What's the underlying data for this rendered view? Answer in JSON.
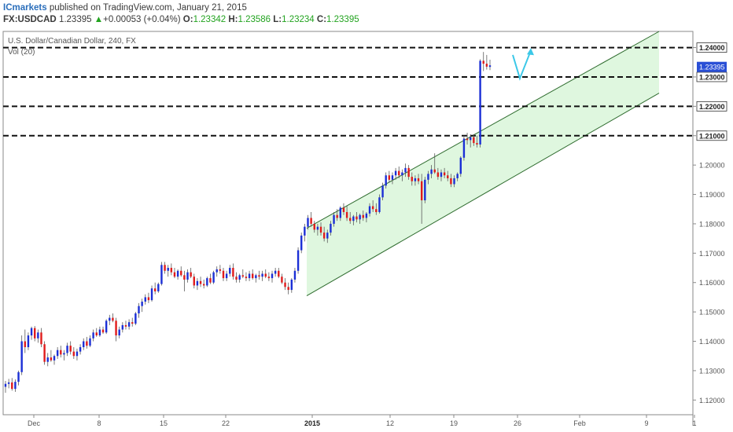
{
  "header": {
    "publisher": "ICmarkets",
    "published_text": "published on TradingView.com, January 21, 2015",
    "symbol": "FX:USDCAD",
    "last": "1.23395",
    "change_arrow": "▲",
    "change": "+0.00053 (+0.04%)",
    "open_label": "O:",
    "open": "1.23342",
    "high_label": "H:",
    "high": "1.23586",
    "low_label": "L:",
    "low": "1.23234",
    "close_label": "C:",
    "close": "1.23395"
  },
  "chart_data": {
    "type": "candlestick",
    "title": "U.S. Dollar/Canadian Dollar, 240, FX",
    "indicator_label": "Vol (20)",
    "ylim": [
      1.115,
      1.2455
    ],
    "y_ticks": [
      "1.12000",
      "1.13000",
      "1.14000",
      "1.15000",
      "1.16000",
      "1.17000",
      "1.18000",
      "1.19000",
      "1.20000",
      "1.21000",
      "1.22000",
      "1.23000",
      "1.24000"
    ],
    "x_ticks": [
      {
        "label": "Dec",
        "bold": false
      },
      {
        "label": "8",
        "bold": false
      },
      {
        "label": "15",
        "bold": false
      },
      {
        "label": "22",
        "bold": false
      },
      {
        "label": "2015",
        "bold": true
      },
      {
        "label": "12",
        "bold": false
      },
      {
        "label": "19",
        "bold": false
      },
      {
        "label": "26",
        "bold": false
      },
      {
        "label": "Feb",
        "bold": false
      },
      {
        "label": "9",
        "bold": false
      },
      {
        "label": "1",
        "bold": false
      }
    ],
    "horizontal_levels": [
      {
        "value": 1.24,
        "label": "1.24000",
        "style": "dashed"
      },
      {
        "value": 1.23,
        "label": "1.23000",
        "style": "dashed"
      },
      {
        "value": 1.22,
        "label": "1.22000",
        "style": "dashed"
      },
      {
        "value": 1.21,
        "label": "1.21000",
        "style": "dashed"
      }
    ],
    "current_price": {
      "value": 1.23395,
      "label": "1.23395"
    },
    "channel": {
      "upper": {
        "start": 1.1785,
        "end": 1.2455
      },
      "lower": {
        "start": 1.1555,
        "end": 1.2245
      },
      "fill": "#dff7df"
    },
    "projection_arrow": {
      "points": [
        1.2375,
        1.2295,
        1.239
      ]
    },
    "colors": {
      "up": "#1b2fd6",
      "down": "#e01b1b",
      "arrow": "#3cc8e8",
      "level": "#111111",
      "current_price": "#2a4fd6"
    },
    "candles": [
      {
        "o": 1.1245,
        "h": 1.1265,
        "l": 1.1225,
        "c": 1.1255
      },
      {
        "o": 1.1255,
        "h": 1.1272,
        "l": 1.124,
        "c": 1.126
      },
      {
        "o": 1.126,
        "h": 1.1275,
        "l": 1.1232,
        "c": 1.1238
      },
      {
        "o": 1.1238,
        "h": 1.127,
        "l": 1.1228,
        "c": 1.1262
      },
      {
        "o": 1.1262,
        "h": 1.13,
        "l": 1.125,
        "c": 1.1295
      },
      {
        "o": 1.1295,
        "h": 1.142,
        "l": 1.1285,
        "c": 1.14
      },
      {
        "o": 1.14,
        "h": 1.144,
        "l": 1.136,
        "c": 1.138
      },
      {
        "o": 1.138,
        "h": 1.143,
        "l": 1.137,
        "c": 1.142
      },
      {
        "o": 1.142,
        "h": 1.145,
        "l": 1.1405,
        "c": 1.1445
      },
      {
        "o": 1.1445,
        "h": 1.1452,
        "l": 1.14,
        "c": 1.141
      },
      {
        "o": 1.141,
        "h": 1.144,
        "l": 1.1395,
        "c": 1.143
      },
      {
        "o": 1.143,
        "h": 1.1445,
        "l": 1.138,
        "c": 1.139
      },
      {
        "o": 1.139,
        "h": 1.14,
        "l": 1.132,
        "c": 1.133
      },
      {
        "o": 1.133,
        "h": 1.136,
        "l": 1.1315,
        "c": 1.1345
      },
      {
        "o": 1.1345,
        "h": 1.137,
        "l": 1.133,
        "c": 1.1335
      },
      {
        "o": 1.1335,
        "h": 1.1355,
        "l": 1.132,
        "c": 1.135
      },
      {
        "o": 1.135,
        "h": 1.138,
        "l": 1.134,
        "c": 1.137
      },
      {
        "o": 1.137,
        "h": 1.1385,
        "l": 1.1345,
        "c": 1.1355
      },
      {
        "o": 1.1355,
        "h": 1.137,
        "l": 1.1335,
        "c": 1.136
      },
      {
        "o": 1.136,
        "h": 1.1395,
        "l": 1.135,
        "c": 1.1385
      },
      {
        "o": 1.1385,
        "h": 1.14,
        "l": 1.1355,
        "c": 1.1365
      },
      {
        "o": 1.1365,
        "h": 1.138,
        "l": 1.134,
        "c": 1.135
      },
      {
        "o": 1.135,
        "h": 1.1375,
        "l": 1.1335,
        "c": 1.1365
      },
      {
        "o": 1.1365,
        "h": 1.139,
        "l": 1.1355,
        "c": 1.138
      },
      {
        "o": 1.138,
        "h": 1.141,
        "l": 1.137,
        "c": 1.14
      },
      {
        "o": 1.14,
        "h": 1.1415,
        "l": 1.1375,
        "c": 1.1385
      },
      {
        "o": 1.1385,
        "h": 1.142,
        "l": 1.138,
        "c": 1.141
      },
      {
        "o": 1.141,
        "h": 1.144,
        "l": 1.14,
        "c": 1.143
      },
      {
        "o": 1.143,
        "h": 1.1445,
        "l": 1.1415,
        "c": 1.142
      },
      {
        "o": 1.142,
        "h": 1.145,
        "l": 1.1415,
        "c": 1.144
      },
      {
        "o": 1.144,
        "h": 1.145,
        "l": 1.1425,
        "c": 1.143
      },
      {
        "o": 1.143,
        "h": 1.1475,
        "l": 1.1425,
        "c": 1.147
      },
      {
        "o": 1.147,
        "h": 1.149,
        "l": 1.1455,
        "c": 1.148
      },
      {
        "o": 1.148,
        "h": 1.1495,
        "l": 1.1465,
        "c": 1.147
      },
      {
        "o": 1.147,
        "h": 1.148,
        "l": 1.14,
        "c": 1.142
      },
      {
        "o": 1.142,
        "h": 1.145,
        "l": 1.141,
        "c": 1.144
      },
      {
        "o": 1.144,
        "h": 1.1465,
        "l": 1.143,
        "c": 1.1455
      },
      {
        "o": 1.1455,
        "h": 1.147,
        "l": 1.144,
        "c": 1.145
      },
      {
        "o": 1.145,
        "h": 1.1475,
        "l": 1.144,
        "c": 1.1465
      },
      {
        "o": 1.1465,
        "h": 1.148,
        "l": 1.145,
        "c": 1.146
      },
      {
        "o": 1.146,
        "h": 1.15,
        "l": 1.1455,
        "c": 1.1495
      },
      {
        "o": 1.1495,
        "h": 1.153,
        "l": 1.148,
        "c": 1.152
      },
      {
        "o": 1.152,
        "h": 1.1545,
        "l": 1.15,
        "c": 1.1535
      },
      {
        "o": 1.1535,
        "h": 1.156,
        "l": 1.1525,
        "c": 1.155
      },
      {
        "o": 1.155,
        "h": 1.1565,
        "l": 1.153,
        "c": 1.154
      },
      {
        "o": 1.154,
        "h": 1.159,
        "l": 1.1535,
        "c": 1.158
      },
      {
        "o": 1.158,
        "h": 1.16,
        "l": 1.156,
        "c": 1.157
      },
      {
        "o": 1.157,
        "h": 1.16,
        "l": 1.1565,
        "c": 1.1595
      },
      {
        "o": 1.1595,
        "h": 1.167,
        "l": 1.159,
        "c": 1.166
      },
      {
        "o": 1.166,
        "h": 1.167,
        "l": 1.163,
        "c": 1.164
      },
      {
        "o": 1.164,
        "h": 1.166,
        "l": 1.162,
        "c": 1.165
      },
      {
        "o": 1.165,
        "h": 1.1665,
        "l": 1.1625,
        "c": 1.1635
      },
      {
        "o": 1.1635,
        "h": 1.165,
        "l": 1.1615,
        "c": 1.162
      },
      {
        "o": 1.162,
        "h": 1.1645,
        "l": 1.161,
        "c": 1.164
      },
      {
        "o": 1.164,
        "h": 1.1655,
        "l": 1.162,
        "c": 1.1625
      },
      {
        "o": 1.1625,
        "h": 1.164,
        "l": 1.157,
        "c": 1.161
      },
      {
        "o": 1.161,
        "h": 1.1645,
        "l": 1.16,
        "c": 1.1635
      },
      {
        "o": 1.1635,
        "h": 1.165,
        "l": 1.1615,
        "c": 1.162
      },
      {
        "o": 1.162,
        "h": 1.163,
        "l": 1.158,
        "c": 1.159
      },
      {
        "o": 1.159,
        "h": 1.1615,
        "l": 1.1575,
        "c": 1.1605
      },
      {
        "o": 1.1605,
        "h": 1.162,
        "l": 1.1585,
        "c": 1.1595
      },
      {
        "o": 1.1595,
        "h": 1.161,
        "l": 1.158,
        "c": 1.159
      },
      {
        "o": 1.159,
        "h": 1.162,
        "l": 1.1585,
        "c": 1.1615
      },
      {
        "o": 1.1615,
        "h": 1.163,
        "l": 1.1595,
        "c": 1.16
      },
      {
        "o": 1.16,
        "h": 1.164,
        "l": 1.1595,
        "c": 1.1635
      },
      {
        "o": 1.1635,
        "h": 1.1655,
        "l": 1.162,
        "c": 1.1645
      },
      {
        "o": 1.1645,
        "h": 1.166,
        "l": 1.163,
        "c": 1.164
      },
      {
        "o": 1.164,
        "h": 1.165,
        "l": 1.1605,
        "c": 1.1615
      },
      {
        "o": 1.1615,
        "h": 1.164,
        "l": 1.1605,
        "c": 1.163
      },
      {
        "o": 1.163,
        "h": 1.166,
        "l": 1.162,
        "c": 1.165
      },
      {
        "o": 1.165,
        "h": 1.1665,
        "l": 1.161,
        "c": 1.162
      },
      {
        "o": 1.162,
        "h": 1.1635,
        "l": 1.16,
        "c": 1.161
      },
      {
        "o": 1.161,
        "h": 1.163,
        "l": 1.16,
        "c": 1.1625
      },
      {
        "o": 1.1625,
        "h": 1.1645,
        "l": 1.1615,
        "c": 1.162
      },
      {
        "o": 1.162,
        "h": 1.1635,
        "l": 1.1605,
        "c": 1.1615
      },
      {
        "o": 1.1615,
        "h": 1.164,
        "l": 1.1605,
        "c": 1.163
      },
      {
        "o": 1.163,
        "h": 1.1645,
        "l": 1.161,
        "c": 1.1615
      },
      {
        "o": 1.1615,
        "h": 1.163,
        "l": 1.16,
        "c": 1.1625
      },
      {
        "o": 1.1625,
        "h": 1.164,
        "l": 1.161,
        "c": 1.162
      },
      {
        "o": 1.162,
        "h": 1.164,
        "l": 1.1605,
        "c": 1.163
      },
      {
        "o": 1.163,
        "h": 1.1645,
        "l": 1.1615,
        "c": 1.162
      },
      {
        "o": 1.162,
        "h": 1.1635,
        "l": 1.1605,
        "c": 1.1615
      },
      {
        "o": 1.1615,
        "h": 1.164,
        "l": 1.16,
        "c": 1.163
      },
      {
        "o": 1.163,
        "h": 1.165,
        "l": 1.162,
        "c": 1.164
      },
      {
        "o": 1.164,
        "h": 1.165,
        "l": 1.1615,
        "c": 1.162
      },
      {
        "o": 1.162,
        "h": 1.163,
        "l": 1.1595,
        "c": 1.16
      },
      {
        "o": 1.16,
        "h": 1.1615,
        "l": 1.1575,
        "c": 1.1585
      },
      {
        "o": 1.1585,
        "h": 1.16,
        "l": 1.156,
        "c": 1.1575
      },
      {
        "o": 1.1575,
        "h": 1.1615,
        "l": 1.1565,
        "c": 1.161
      },
      {
        "o": 1.161,
        "h": 1.165,
        "l": 1.16,
        "c": 1.164
      },
      {
        "o": 1.164,
        "h": 1.172,
        "l": 1.163,
        "c": 1.171
      },
      {
        "o": 1.171,
        "h": 1.177,
        "l": 1.17,
        "c": 1.176
      },
      {
        "o": 1.176,
        "h": 1.18,
        "l": 1.174,
        "c": 1.179
      },
      {
        "o": 1.179,
        "h": 1.183,
        "l": 1.178,
        "c": 1.182
      },
      {
        "o": 1.182,
        "h": 1.184,
        "l": 1.179,
        "c": 1.18
      },
      {
        "o": 1.18,
        "h": 1.181,
        "l": 1.177,
        "c": 1.178
      },
      {
        "o": 1.178,
        "h": 1.18,
        "l": 1.176,
        "c": 1.179
      },
      {
        "o": 1.179,
        "h": 1.1805,
        "l": 1.176,
        "c": 1.177
      },
      {
        "o": 1.177,
        "h": 1.179,
        "l": 1.174,
        "c": 1.175
      },
      {
        "o": 1.175,
        "h": 1.178,
        "l": 1.1735,
        "c": 1.177
      },
      {
        "o": 1.177,
        "h": 1.181,
        "l": 1.176,
        "c": 1.18
      },
      {
        "o": 1.18,
        "h": 1.184,
        "l": 1.179,
        "c": 1.183
      },
      {
        "o": 1.183,
        "h": 1.185,
        "l": 1.181,
        "c": 1.182
      },
      {
        "o": 1.182,
        "h": 1.186,
        "l": 1.181,
        "c": 1.1855
      },
      {
        "o": 1.1855,
        "h": 1.187,
        "l": 1.183,
        "c": 1.184
      },
      {
        "o": 1.184,
        "h": 1.186,
        "l": 1.181,
        "c": 1.182
      },
      {
        "o": 1.182,
        "h": 1.184,
        "l": 1.18,
        "c": 1.181
      },
      {
        "o": 1.181,
        "h": 1.183,
        "l": 1.1795,
        "c": 1.1825
      },
      {
        "o": 1.1825,
        "h": 1.184,
        "l": 1.1805,
        "c": 1.1815
      },
      {
        "o": 1.1815,
        "h": 1.1835,
        "l": 1.18,
        "c": 1.183
      },
      {
        "o": 1.183,
        "h": 1.1845,
        "l": 1.181,
        "c": 1.182
      },
      {
        "o": 1.182,
        "h": 1.184,
        "l": 1.1805,
        "c": 1.1835
      },
      {
        "o": 1.1835,
        "h": 1.187,
        "l": 1.1825,
        "c": 1.186
      },
      {
        "o": 1.186,
        "h": 1.188,
        "l": 1.184,
        "c": 1.185
      },
      {
        "o": 1.185,
        "h": 1.187,
        "l": 1.183,
        "c": 1.184
      },
      {
        "o": 1.184,
        "h": 1.19,
        "l": 1.1835,
        "c": 1.189
      },
      {
        "o": 1.189,
        "h": 1.194,
        "l": 1.188,
        "c": 1.193
      },
      {
        "o": 1.193,
        "h": 1.1975,
        "l": 1.192,
        "c": 1.1965
      },
      {
        "o": 1.1965,
        "h": 1.198,
        "l": 1.194,
        "c": 1.195
      },
      {
        "o": 1.195,
        "h": 1.1975,
        "l": 1.1935,
        "c": 1.1965
      },
      {
        "o": 1.1965,
        "h": 1.199,
        "l": 1.195,
        "c": 1.198
      },
      {
        "o": 1.198,
        "h": 1.1995,
        "l": 1.1955,
        "c": 1.1965
      },
      {
        "o": 1.1965,
        "h": 1.1985,
        "l": 1.1945,
        "c": 1.1975
      },
      {
        "o": 1.1975,
        "h": 1.2005,
        "l": 1.196,
        "c": 1.199
      },
      {
        "o": 1.199,
        "h": 1.2,
        "l": 1.195,
        "c": 1.196
      },
      {
        "o": 1.196,
        "h": 1.1975,
        "l": 1.193,
        "c": 1.1945
      },
      {
        "o": 1.1945,
        "h": 1.1965,
        "l": 1.193,
        "c": 1.1955
      },
      {
        "o": 1.1955,
        "h": 1.197,
        "l": 1.1935,
        "c": 1.1945
      },
      {
        "o": 1.1945,
        "h": 1.197,
        "l": 1.18,
        "c": 1.188
      },
      {
        "o": 1.188,
        "h": 1.196,
        "l": 1.187,
        "c": 1.195
      },
      {
        "o": 1.195,
        "h": 1.198,
        "l": 1.1935,
        "c": 1.197
      },
      {
        "o": 1.197,
        "h": 1.2,
        "l": 1.1955,
        "c": 1.1985
      },
      {
        "o": 1.1985,
        "h": 1.204,
        "l": 1.197,
        "c": 1.1975
      },
      {
        "o": 1.1975,
        "h": 1.199,
        "l": 1.195,
        "c": 1.196
      },
      {
        "o": 1.196,
        "h": 1.1985,
        "l": 1.1945,
        "c": 1.1975
      },
      {
        "o": 1.1975,
        "h": 1.199,
        "l": 1.1955,
        "c": 1.1965
      },
      {
        "o": 1.1965,
        "h": 1.198,
        "l": 1.1945,
        "c": 1.1955
      },
      {
        "o": 1.1955,
        "h": 1.197,
        "l": 1.1925,
        "c": 1.1935
      },
      {
        "o": 1.1935,
        "h": 1.1965,
        "l": 1.1925,
        "c": 1.1955
      },
      {
        "o": 1.1955,
        "h": 1.1975,
        "l": 1.1945,
        "c": 1.197
      },
      {
        "o": 1.197,
        "h": 1.203,
        "l": 1.196,
        "c": 1.2025
      },
      {
        "o": 1.2025,
        "h": 1.21,
        "l": 1.2015,
        "c": 1.209
      },
      {
        "o": 1.209,
        "h": 1.211,
        "l": 1.207,
        "c": 1.2085
      },
      {
        "o": 1.2085,
        "h": 1.2105,
        "l": 1.206,
        "c": 1.2095
      },
      {
        "o": 1.2095,
        "h": 1.2105,
        "l": 1.2065,
        "c": 1.2075
      },
      {
        "o": 1.2075,
        "h": 1.21,
        "l": 1.206,
        "c": 1.207
      },
      {
        "o": 1.207,
        "h": 1.236,
        "l": 1.206,
        "c": 1.2355
      },
      {
        "o": 1.2355,
        "h": 1.2385,
        "l": 1.232,
        "c": 1.2345
      },
      {
        "o": 1.2345,
        "h": 1.2375,
        "l": 1.2325,
        "c": 1.2335
      },
      {
        "o": 1.23342,
        "h": 1.23586,
        "l": 1.23234,
        "c": 1.23395
      }
    ]
  }
}
